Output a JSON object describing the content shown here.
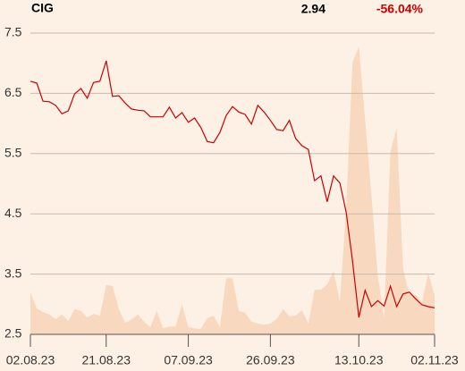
{
  "header": {
    "symbol": "CIG",
    "price": "2.94",
    "change": "-56.04%"
  },
  "chart_data": {
    "type": "line",
    "ylim": [
      2.5,
      7.5
    ],
    "yticks": [
      2.5,
      3.5,
      4.5,
      5.5,
      6.5,
      7.5
    ],
    "xlim": [
      0,
      64
    ],
    "xticks": [
      {
        "value": 0,
        "label": "02.08.23"
      },
      {
        "value": 12,
        "label": "21.08.23"
      },
      {
        "value": 25,
        "label": "07.09.23"
      },
      {
        "value": 38,
        "label": "26.09.23"
      },
      {
        "value": 52,
        "label": "13.10.23"
      },
      {
        "value": 64,
        "label": "02.11.23"
      }
    ],
    "grid": true,
    "series": [
      {
        "type": "area",
        "color": "#f8d9bf",
        "values": [
          3.2,
          2.93,
          2.87,
          2.83,
          2.75,
          2.83,
          2.72,
          2.92,
          2.89,
          2.78,
          2.84,
          2.81,
          3.32,
          3.3,
          2.92,
          2.69,
          2.75,
          2.83,
          2.71,
          2.62,
          2.89,
          2.6,
          2.63,
          2.63,
          3.0,
          2.62,
          2.6,
          2.59,
          2.77,
          2.81,
          2.62,
          3.43,
          3.43,
          2.89,
          2.86,
          2.71,
          2.68,
          2.66,
          2.68,
          2.75,
          2.92,
          2.8,
          2.81,
          2.9,
          2.68,
          3.24,
          3.24,
          3.33,
          3.55,
          3.05,
          4.59,
          7.01,
          7.28,
          6.05,
          4.81,
          3.48,
          2.78,
          5.53,
          5.93,
          3.6,
          3.15,
          3.15,
          3.03,
          3.51,
          3.15
        ]
      },
      {
        "type": "line",
        "color": "#cc0000",
        "values": [
          6.7,
          6.67,
          6.37,
          6.36,
          6.3,
          6.16,
          6.21,
          6.49,
          6.58,
          6.42,
          6.68,
          6.7,
          7.04,
          6.45,
          6.46,
          6.34,
          6.24,
          6.22,
          6.21,
          6.11,
          6.11,
          6.11,
          6.27,
          6.09,
          6.18,
          6.02,
          6.09,
          5.93,
          5.7,
          5.68,
          5.85,
          6.13,
          6.28,
          6.19,
          6.15,
          5.99,
          6.3,
          6.19,
          6.05,
          5.9,
          5.88,
          6.05,
          5.75,
          5.63,
          5.57,
          5.05,
          5.13,
          4.7,
          5.13,
          5.01,
          4.53,
          3.72,
          2.78,
          3.23,
          2.96,
          3.06,
          2.97,
          3.3,
          2.96,
          3.17,
          3.2,
          3.09,
          2.99,
          2.96,
          2.94
        ]
      }
    ]
  }
}
